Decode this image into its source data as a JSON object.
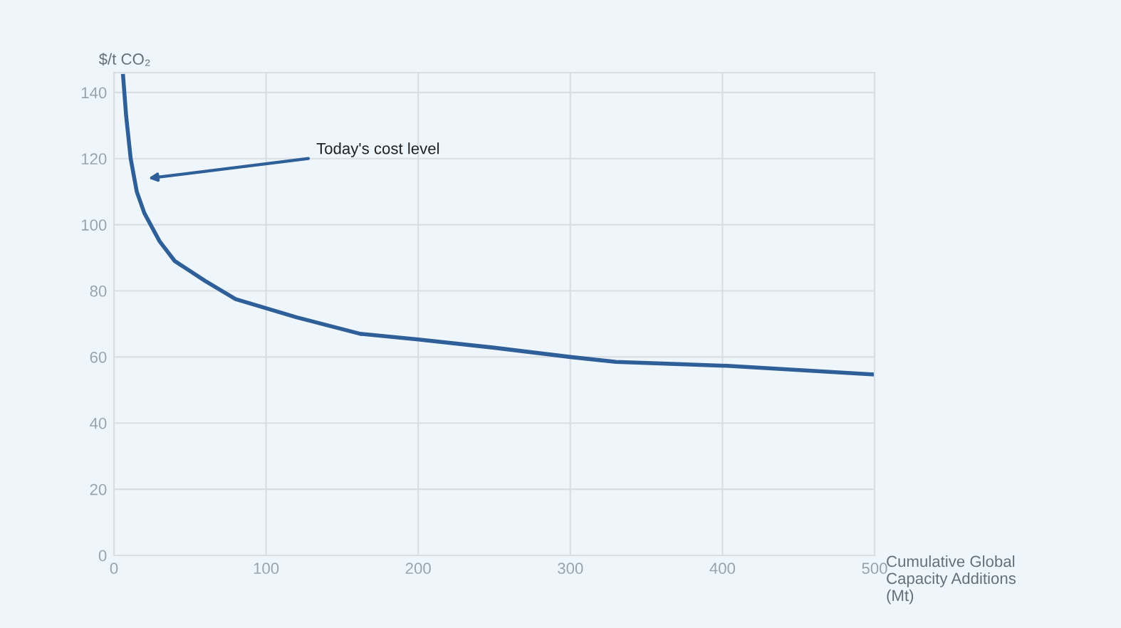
{
  "chart_data": {
    "type": "line",
    "ylabel": "$/t CO₂",
    "xlabel": "Cumulative Global\nCapacity Additions\n(Mt)",
    "x": [
      6,
      8,
      11,
      15,
      20,
      30,
      40,
      60,
      80,
      120,
      162,
      200,
      250,
      300,
      330,
      405,
      500
    ],
    "series": [
      {
        "color": "#2f5f98",
        "values": [
          145,
          133,
          120,
          110,
          103.5,
          95,
          89,
          83,
          77.5,
          72,
          67,
          65.3,
          62.8,
          60,
          58.5,
          57.3,
          54.7
        ]
      }
    ],
    "xlim": [
      0,
      500
    ],
    "ylim": [
      0,
      146
    ],
    "xticks": [
      0,
      100,
      200,
      300,
      400,
      500
    ],
    "yticks": [
      0,
      20,
      40,
      60,
      80,
      100,
      120,
      140
    ],
    "grid": true,
    "line_style": "solid",
    "marker": "none",
    "annotations": [
      "Today's cost level"
    ]
  }
}
